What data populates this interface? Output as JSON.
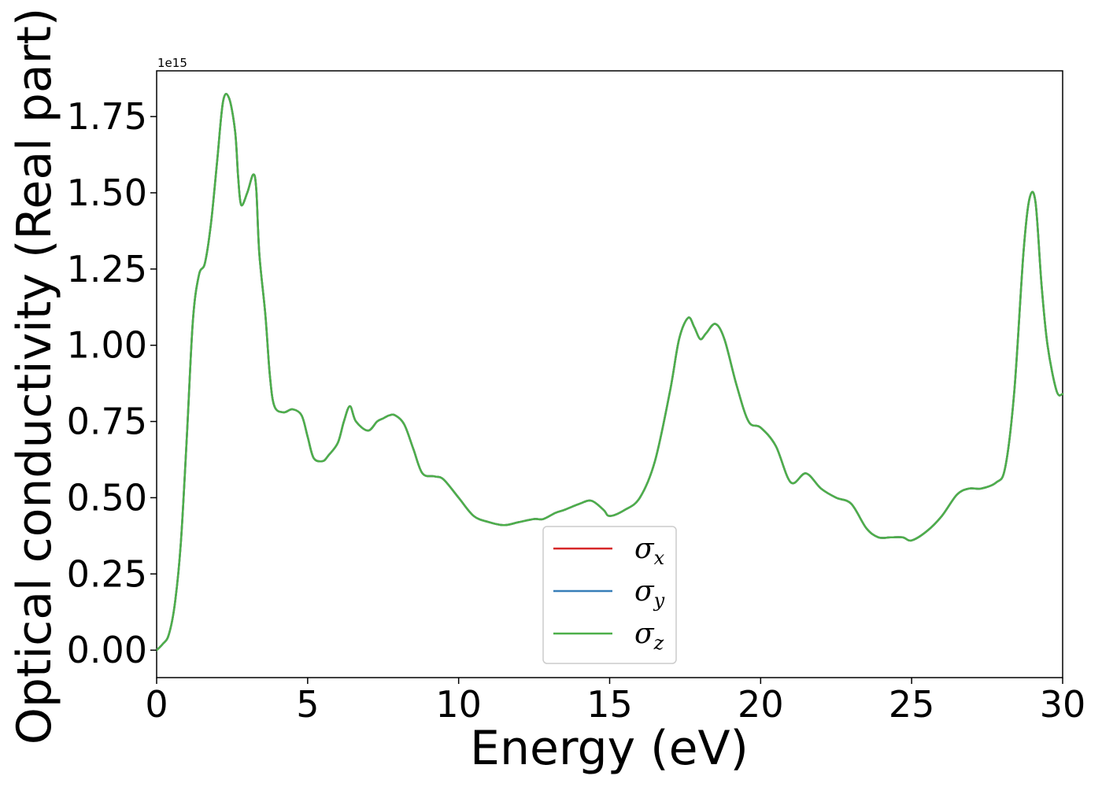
{
  "chart_data": {
    "type": "line",
    "xlabel": "Energy (eV)",
    "ylabel": "Optical conductivity (Real part)",
    "y_offset_text": "1e15",
    "xlim": [
      0,
      30
    ],
    "ylim": [
      -0.09,
      1.9
    ],
    "x_ticks": [
      "0",
      "5",
      "10",
      "15",
      "20",
      "25",
      "30"
    ],
    "y_ticks": [
      "0.00",
      "0.25",
      "0.50",
      "0.75",
      "1.00",
      "1.25",
      "1.50",
      "1.75"
    ],
    "grid": false,
    "legend_position": "lower-center",
    "x": [
      0,
      0.2,
      0.4,
      0.6,
      0.8,
      1.0,
      1.2,
      1.4,
      1.6,
      1.8,
      2.0,
      2.2,
      2.4,
      2.6,
      2.7,
      2.8,
      3.0,
      3.2,
      3.3,
      3.4,
      3.6,
      3.75,
      3.9,
      4.2,
      4.5,
      4.8,
      5.0,
      5.2,
      5.5,
      5.7,
      6.0,
      6.2,
      6.4,
      6.6,
      7.0,
      7.3,
      7.5,
      7.7,
      7.9,
      8.2,
      8.5,
      8.8,
      9.2,
      9.5,
      10.0,
      10.5,
      11.0,
      11.5,
      12.0,
      12.5,
      12.8,
      13.2,
      13.5,
      14.0,
      14.4,
      14.8,
      15.0,
      15.5,
      16.0,
      16.5,
      17.0,
      17.3,
      17.6,
      17.8,
      18.0,
      18.2,
      18.5,
      18.8,
      19.2,
      19.6,
      20.0,
      20.5,
      21.0,
      21.5,
      22.0,
      22.5,
      23.0,
      23.5,
      23.9,
      24.3,
      24.7,
      25.0,
      25.5,
      26.0,
      26.5,
      26.9,
      27.3,
      27.8,
      28.1,
      28.4,
      28.7,
      28.9,
      29.1,
      29.3,
      29.5,
      29.8,
      30.0
    ],
    "series": [
      {
        "name": "σx",
        "color": "#d62728",
        "values": [
          0.0,
          0.02,
          0.05,
          0.15,
          0.35,
          0.7,
          1.08,
          1.23,
          1.27,
          1.4,
          1.6,
          1.8,
          1.81,
          1.7,
          1.55,
          1.46,
          1.5,
          1.56,
          1.51,
          1.3,
          1.1,
          0.9,
          0.8,
          0.78,
          0.79,
          0.77,
          0.7,
          0.63,
          0.62,
          0.64,
          0.68,
          0.75,
          0.8,
          0.75,
          0.72,
          0.75,
          0.76,
          0.77,
          0.77,
          0.74,
          0.66,
          0.58,
          0.57,
          0.56,
          0.5,
          0.44,
          0.42,
          0.41,
          0.42,
          0.43,
          0.43,
          0.45,
          0.46,
          0.48,
          0.49,
          0.46,
          0.44,
          0.46,
          0.5,
          0.62,
          0.85,
          1.02,
          1.09,
          1.06,
          1.02,
          1.04,
          1.07,
          1.02,
          0.87,
          0.75,
          0.73,
          0.67,
          0.55,
          0.58,
          0.53,
          0.5,
          0.48,
          0.4,
          0.37,
          0.37,
          0.37,
          0.36,
          0.39,
          0.44,
          0.51,
          0.53,
          0.53,
          0.55,
          0.6,
          0.85,
          1.3,
          1.48,
          1.47,
          1.2,
          1.0,
          0.85,
          0.84
        ]
      },
      {
        "name": "σy",
        "color": "#377eb8",
        "values": [
          0.0,
          0.02,
          0.05,
          0.15,
          0.35,
          0.7,
          1.08,
          1.23,
          1.27,
          1.4,
          1.6,
          1.8,
          1.81,
          1.7,
          1.55,
          1.46,
          1.5,
          1.56,
          1.51,
          1.3,
          1.1,
          0.9,
          0.8,
          0.78,
          0.79,
          0.77,
          0.7,
          0.63,
          0.62,
          0.64,
          0.68,
          0.75,
          0.8,
          0.75,
          0.72,
          0.75,
          0.76,
          0.77,
          0.77,
          0.74,
          0.66,
          0.58,
          0.57,
          0.56,
          0.5,
          0.44,
          0.42,
          0.41,
          0.42,
          0.43,
          0.43,
          0.45,
          0.46,
          0.48,
          0.49,
          0.46,
          0.44,
          0.46,
          0.5,
          0.62,
          0.85,
          1.02,
          1.09,
          1.06,
          1.02,
          1.04,
          1.07,
          1.02,
          0.87,
          0.75,
          0.73,
          0.67,
          0.55,
          0.58,
          0.53,
          0.5,
          0.48,
          0.4,
          0.37,
          0.37,
          0.37,
          0.36,
          0.39,
          0.44,
          0.51,
          0.53,
          0.53,
          0.55,
          0.6,
          0.85,
          1.3,
          1.48,
          1.47,
          1.2,
          1.0,
          0.85,
          0.84
        ]
      },
      {
        "name": "σz",
        "color": "#4daf4a",
        "values": [
          0.0,
          0.02,
          0.05,
          0.15,
          0.35,
          0.7,
          1.08,
          1.23,
          1.27,
          1.4,
          1.6,
          1.8,
          1.81,
          1.7,
          1.55,
          1.46,
          1.5,
          1.56,
          1.51,
          1.3,
          1.1,
          0.9,
          0.8,
          0.78,
          0.79,
          0.77,
          0.7,
          0.63,
          0.62,
          0.64,
          0.68,
          0.75,
          0.8,
          0.75,
          0.72,
          0.75,
          0.76,
          0.77,
          0.77,
          0.74,
          0.66,
          0.58,
          0.57,
          0.56,
          0.5,
          0.44,
          0.42,
          0.41,
          0.42,
          0.43,
          0.43,
          0.45,
          0.46,
          0.48,
          0.49,
          0.46,
          0.44,
          0.46,
          0.5,
          0.62,
          0.85,
          1.02,
          1.09,
          1.06,
          1.02,
          1.04,
          1.07,
          1.02,
          0.87,
          0.75,
          0.73,
          0.67,
          0.55,
          0.58,
          0.53,
          0.5,
          0.48,
          0.4,
          0.37,
          0.37,
          0.37,
          0.36,
          0.39,
          0.44,
          0.51,
          0.53,
          0.53,
          0.55,
          0.6,
          0.85,
          1.3,
          1.48,
          1.47,
          1.2,
          1.0,
          0.85,
          0.84
        ]
      }
    ],
    "legend": [
      {
        "base": "σ",
        "sub": "x"
      },
      {
        "base": "σ",
        "sub": "y"
      },
      {
        "base": "σ",
        "sub": "z"
      }
    ]
  }
}
